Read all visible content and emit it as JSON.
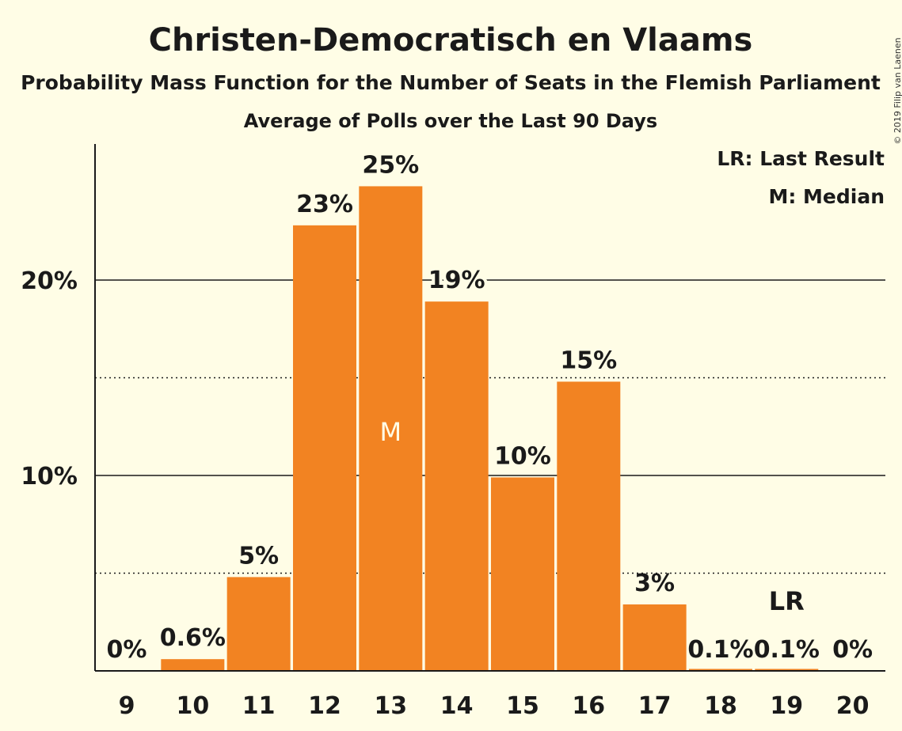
{
  "title": "Christen-Democratisch en Vlaams",
  "subtitle": "Probability Mass Function for the Number of Seats in the Flemish Parliament",
  "subtitle2": "Average of Polls over the Last 90 Days",
  "copyright": "© 2019 Filip van Laenen",
  "legend": {
    "last_result": "LR: Last Result",
    "median": "M: Median"
  },
  "colors": {
    "bar": "#f28322",
    "background": "#fffde6",
    "text": "#1a1a1a"
  },
  "chart_data": {
    "type": "bar",
    "categories": [
      "9",
      "10",
      "11",
      "12",
      "13",
      "14",
      "15",
      "16",
      "17",
      "18",
      "19",
      "20"
    ],
    "values": [
      0,
      0.6,
      4.8,
      22.8,
      24.8,
      18.9,
      9.9,
      14.8,
      3.4,
      0.1,
      0.1,
      0
    ],
    "data_labels": [
      "0%",
      "0.6%",
      "5%",
      "23%",
      "25%",
      "19%",
      "10%",
      "15%",
      "3%",
      "0.1%",
      "0.1%",
      "0%"
    ],
    "ylim": [
      0,
      27
    ],
    "yticks": [
      {
        "value": 10,
        "label": "10%"
      },
      {
        "value": 20,
        "label": "20%"
      }
    ],
    "dotted_gridlines": [
      5,
      15
    ],
    "median_category": "13",
    "median_label": "M",
    "last_result_category": "19",
    "last_result_label": "LR",
    "grid": true,
    "legend_position": "top-right"
  }
}
